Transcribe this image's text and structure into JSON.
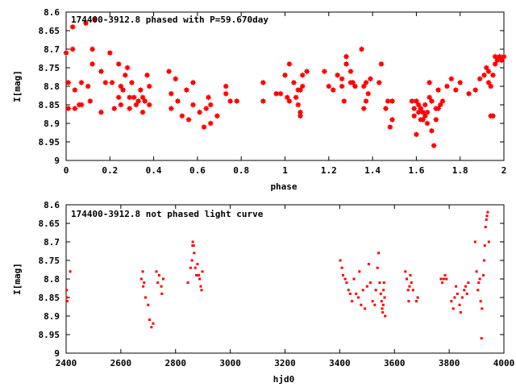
{
  "colors": {
    "points": "#ff0000",
    "axes": "#000000",
    "background": "#ffffff"
  },
  "chart_data": [
    {
      "type": "scatter",
      "title": "174400-3912.8 phased with P=59.670day",
      "xlabel": "phase",
      "ylabel": "I[mag]",
      "xlim": [
        0,
        2
      ],
      "ylim": [
        8.6,
        9
      ],
      "y_inverted": true,
      "grid": false,
      "marker": "cross",
      "xticks": [
        "0",
        "0.2",
        "0.4",
        "0.6",
        "0.8",
        "1",
        "1.2",
        "1.4",
        "1.6",
        "1.8",
        "2"
      ],
      "yticks": [
        "8.6",
        "8.65",
        "8.7",
        "8.75",
        "8.8",
        "8.85",
        "8.9",
        "8.95",
        "9"
      ],
      "points": [
        [
          0.0,
          8.71
        ],
        [
          0.01,
          8.79
        ],
        [
          0.01,
          8.86
        ],
        [
          0.03,
          8.64
        ],
        [
          0.03,
          8.7
        ],
        [
          0.04,
          8.81
        ],
        [
          0.04,
          8.86
        ],
        [
          0.06,
          8.85
        ],
        [
          0.07,
          8.85
        ],
        [
          0.07,
          8.79
        ],
        [
          0.09,
          8.63
        ],
        [
          0.1,
          8.8
        ],
        [
          0.11,
          8.84
        ],
        [
          0.12,
          8.74
        ],
        [
          0.12,
          8.7
        ],
        [
          0.13,
          8.62
        ],
        [
          0.16,
          8.76
        ],
        [
          0.16,
          8.87
        ],
        [
          0.18,
          8.79
        ],
        [
          0.2,
          8.71
        ],
        [
          0.21,
          8.79
        ],
        [
          0.22,
          8.86
        ],
        [
          0.24,
          8.83
        ],
        [
          0.24,
          8.74
        ],
        [
          0.25,
          8.8
        ],
        [
          0.25,
          8.85
        ],
        [
          0.26,
          8.81
        ],
        [
          0.27,
          8.77
        ],
        [
          0.28,
          8.75
        ],
        [
          0.29,
          8.83
        ],
        [
          0.29,
          8.86
        ],
        [
          0.3,
          8.79
        ],
        [
          0.31,
          8.83
        ],
        [
          0.32,
          8.85
        ],
        [
          0.33,
          8.84
        ],
        [
          0.34,
          8.81
        ],
        [
          0.35,
          8.83
        ],
        [
          0.35,
          8.87
        ],
        [
          0.36,
          8.84
        ],
        [
          0.37,
          8.77
        ],
        [
          0.38,
          8.85
        ],
        [
          0.38,
          8.8
        ],
        [
          0.47,
          8.76
        ],
        [
          0.48,
          8.82
        ],
        [
          0.48,
          8.86
        ],
        [
          0.5,
          8.78
        ],
        [
          0.51,
          8.84
        ],
        [
          0.53,
          8.88
        ],
        [
          0.55,
          8.81
        ],
        [
          0.56,
          8.89
        ],
        [
          0.58,
          8.79
        ],
        [
          0.58,
          8.85
        ],
        [
          0.61,
          8.87
        ],
        [
          0.63,
          8.91
        ],
        [
          0.64,
          8.86
        ],
        [
          0.65,
          8.83
        ],
        [
          0.66,
          8.85
        ],
        [
          0.66,
          8.9
        ],
        [
          0.69,
          8.88
        ],
        [
          0.73,
          8.8
        ],
        [
          0.73,
          8.82
        ],
        [
          0.75,
          8.84
        ],
        [
          0.78,
          8.84
        ],
        [
          0.9,
          8.79
        ],
        [
          0.9,
          8.84
        ],
        [
          0.96,
          8.82
        ],
        [
          0.98,
          8.82
        ],
        [
          1.0,
          8.77
        ],
        [
          1.01,
          8.83
        ],
        [
          1.02,
          8.84
        ],
        [
          1.02,
          8.74
        ],
        [
          1.04,
          8.79
        ],
        [
          1.05,
          8.83
        ],
        [
          1.06,
          8.81
        ],
        [
          1.06,
          8.85
        ],
        [
          1.07,
          8.81
        ],
        [
          1.07,
          8.87
        ],
        [
          1.07,
          8.88
        ],
        [
          1.08,
          8.8
        ],
        [
          1.08,
          8.77
        ],
        [
          1.1,
          8.76
        ],
        [
          1.18,
          8.76
        ],
        [
          1.2,
          8.8
        ],
        [
          1.22,
          8.81
        ],
        [
          1.24,
          8.77
        ],
        [
          1.26,
          8.78
        ],
        [
          1.26,
          8.8
        ],
        [
          1.27,
          8.84
        ],
        [
          1.28,
          8.72
        ],
        [
          1.28,
          8.74
        ],
        [
          1.3,
          8.76
        ],
        [
          1.3,
          8.79
        ],
        [
          1.31,
          8.79
        ],
        [
          1.32,
          8.8
        ],
        [
          1.35,
          8.7
        ],
        [
          1.36,
          8.8
        ],
        [
          1.36,
          8.86
        ],
        [
          1.37,
          8.79
        ],
        [
          1.37,
          8.84
        ],
        [
          1.38,
          8.82
        ],
        [
          1.39,
          8.78
        ],
        [
          1.43,
          8.79
        ],
        [
          1.44,
          8.74
        ],
        [
          1.46,
          8.86
        ],
        [
          1.47,
          8.84
        ],
        [
          1.48,
          8.91
        ],
        [
          1.49,
          8.89
        ],
        [
          1.49,
          8.84
        ],
        [
          1.58,
          8.84
        ],
        [
          1.59,
          8.86
        ],
        [
          1.59,
          8.88
        ],
        [
          1.6,
          8.93
        ],
        [
          1.6,
          8.84
        ],
        [
          1.61,
          8.87
        ],
        [
          1.61,
          8.85
        ],
        [
          1.62,
          8.86
        ],
        [
          1.62,
          8.89
        ],
        [
          1.63,
          8.87
        ],
        [
          1.63,
          8.89
        ],
        [
          1.64,
          8.88
        ],
        [
          1.64,
          8.85
        ],
        [
          1.65,
          8.9
        ],
        [
          1.65,
          8.87
        ],
        [
          1.66,
          8.83
        ],
        [
          1.66,
          8.79
        ],
        [
          1.67,
          8.84
        ],
        [
          1.67,
          8.92
        ],
        [
          1.68,
          8.96
        ],
        [
          1.69,
          8.89
        ],
        [
          1.69,
          8.86
        ],
        [
          1.7,
          8.86
        ],
        [
          1.7,
          8.81
        ],
        [
          1.71,
          8.85
        ],
        [
          1.72,
          8.84
        ],
        [
          1.74,
          8.8
        ],
        [
          1.76,
          8.78
        ],
        [
          1.78,
          8.81
        ],
        [
          1.8,
          8.79
        ],
        [
          1.84,
          8.82
        ],
        [
          1.87,
          8.81
        ],
        [
          1.89,
          8.78
        ],
        [
          1.91,
          8.77
        ],
        [
          1.92,
          8.75
        ],
        [
          1.93,
          8.79
        ],
        [
          1.93,
          8.76
        ],
        [
          1.94,
          8.88
        ],
        [
          1.94,
          8.8
        ],
        [
          1.95,
          8.88
        ],
        [
          1.95,
          8.77
        ],
        [
          1.96,
          8.72
        ],
        [
          1.96,
          8.74
        ],
        [
          1.97,
          8.73
        ],
        [
          1.98,
          8.72
        ],
        [
          1.99,
          8.73
        ],
        [
          2.0,
          8.72
        ]
      ]
    },
    {
      "type": "scatter",
      "title": "174400-3912.8 not phased light curve",
      "xlabel": "hjd0",
      "ylabel": "I[mag]",
      "xlim": [
        2400,
        4000
      ],
      "ylim": [
        8.6,
        9
      ],
      "y_inverted": true,
      "grid": false,
      "marker": "dot",
      "xticks": [
        "2400",
        "2600",
        "2800",
        "3000",
        "3200",
        "3400",
        "3600",
        "3800",
        "4000"
      ],
      "yticks": [
        "8.6",
        "8.65",
        "8.7",
        "8.75",
        "8.8",
        "8.85",
        "8.9",
        "8.95",
        "9"
      ],
      "points": [
        [
          2402,
          8.83
        ],
        [
          2403,
          8.85
        ],
        [
          2404,
          8.86
        ],
        [
          2415,
          8.78
        ],
        [
          2675,
          8.8
        ],
        [
          2680,
          8.78
        ],
        [
          2682,
          8.82
        ],
        [
          2685,
          8.81
        ],
        [
          2690,
          8.85
        ],
        [
          2700,
          8.87
        ],
        [
          2705,
          8.91
        ],
        [
          2712,
          8.93
        ],
        [
          2718,
          8.92
        ],
        [
          2730,
          8.78
        ],
        [
          2735,
          8.81
        ],
        [
          2740,
          8.79
        ],
        [
          2748,
          8.82
        ],
        [
          2750,
          8.84
        ],
        [
          2755,
          8.8
        ],
        [
          2845,
          8.81
        ],
        [
          2855,
          8.77
        ],
        [
          2860,
          8.75
        ],
        [
          2862,
          8.71
        ],
        [
          2863,
          8.7
        ],
        [
          2866,
          8.71
        ],
        [
          2868,
          8.73
        ],
        [
          2872,
          8.77
        ],
        [
          2876,
          8.79
        ],
        [
          2880,
          8.76
        ],
        [
          2885,
          8.79
        ],
        [
          2888,
          8.8
        ],
        [
          2892,
          8.82
        ],
        [
          2895,
          8.83
        ],
        [
          2898,
          8.78
        ],
        [
          3402,
          8.75
        ],
        [
          3408,
          8.77
        ],
        [
          3412,
          8.79
        ],
        [
          3420,
          8.8
        ],
        [
          3425,
          8.81
        ],
        [
          3432,
          8.83
        ],
        [
          3438,
          8.84
        ],
        [
          3445,
          8.86
        ],
        [
          3452,
          8.8
        ],
        [
          3460,
          8.84
        ],
        [
          3468,
          8.85
        ],
        [
          3472,
          8.78
        ],
        [
          3478,
          8.87
        ],
        [
          3485,
          8.83
        ],
        [
          3492,
          8.88
        ],
        [
          3500,
          8.82
        ],
        [
          3506,
          8.76
        ],
        [
          3512,
          8.81
        ],
        [
          3520,
          8.86
        ],
        [
          3528,
          8.87
        ],
        [
          3532,
          8.83
        ],
        [
          3538,
          8.77
        ],
        [
          3542,
          8.73
        ],
        [
          3546,
          8.81
        ],
        [
          3550,
          8.84
        ],
        [
          3553,
          8.86
        ],
        [
          3555,
          8.88
        ],
        [
          3557,
          8.89
        ],
        [
          3559,
          8.87
        ],
        [
          3560,
          8.83
        ],
        [
          3562,
          8.81
        ],
        [
          3564,
          8.85
        ],
        [
          3566,
          8.9
        ],
        [
          3640,
          8.78
        ],
        [
          3645,
          8.8
        ],
        [
          3650,
          8.83
        ],
        [
          3652,
          8.86
        ],
        [
          3655,
          8.82
        ],
        [
          3658,
          8.79
        ],
        [
          3662,
          8.81
        ],
        [
          3668,
          8.83
        ],
        [
          3680,
          8.86
        ],
        [
          3685,
          8.85
        ],
        [
          3770,
          8.8
        ],
        [
          3775,
          8.81
        ],
        [
          3780,
          8.8
        ],
        [
          3785,
          8.79
        ],
        [
          3790,
          8.8
        ],
        [
          3808,
          8.86
        ],
        [
          3815,
          8.88
        ],
        [
          3820,
          8.85
        ],
        [
          3825,
          8.82
        ],
        [
          3830,
          8.84
        ],
        [
          3838,
          8.87
        ],
        [
          3842,
          8.89
        ],
        [
          3848,
          8.85
        ],
        [
          3855,
          8.83
        ],
        [
          3860,
          8.82
        ],
        [
          3865,
          8.84
        ],
        [
          3870,
          8.81
        ],
        [
          3895,
          8.7
        ],
        [
          3900,
          8.78
        ],
        [
          3905,
          8.83
        ],
        [
          3908,
          8.81
        ],
        [
          3912,
          8.8
        ],
        [
          3915,
          8.86
        ],
        [
          3918,
          8.96
        ],
        [
          3920,
          8.88
        ],
        [
          3925,
          8.79
        ],
        [
          3928,
          8.75
        ],
        [
          3930,
          8.71
        ],
        [
          3933,
          8.66
        ],
        [
          3936,
          8.64
        ],
        [
          3938,
          8.63
        ],
        [
          3941,
          8.62
        ],
        [
          3945,
          8.7
        ]
      ]
    }
  ]
}
